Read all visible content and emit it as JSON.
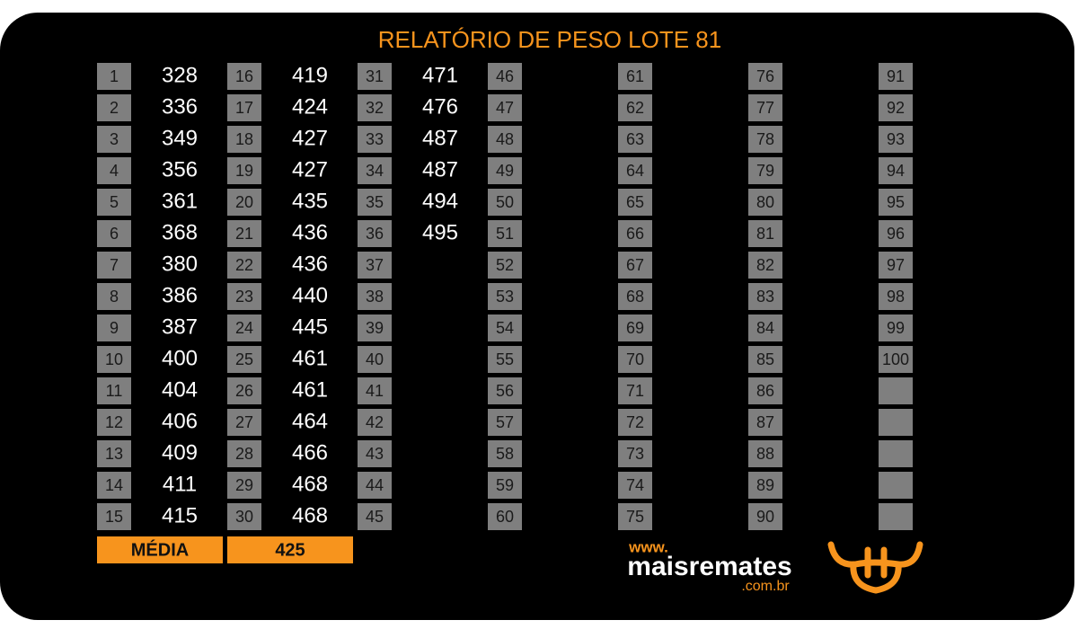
{
  "header": {
    "title": "RELATÓRIO DE PESO LOTE  81"
  },
  "columns": [
    {
      "ids": [
        1,
        2,
        3,
        4,
        5,
        6,
        7,
        8,
        9,
        10,
        11,
        12,
        13,
        14,
        15
      ],
      "weights": [
        328,
        336,
        349,
        356,
        361,
        368,
        380,
        386,
        387,
        400,
        404,
        406,
        409,
        411,
        415
      ]
    },
    {
      "ids": [
        16,
        17,
        18,
        19,
        20,
        21,
        22,
        23,
        24,
        25,
        26,
        27,
        28,
        29,
        30
      ],
      "weights": [
        419,
        424,
        427,
        427,
        435,
        436,
        436,
        440,
        445,
        461,
        461,
        464,
        466,
        468,
        468
      ]
    },
    {
      "ids": [
        31,
        32,
        33,
        34,
        35,
        36,
        37,
        38,
        39,
        40,
        41,
        42,
        43,
        44,
        45
      ],
      "weights": [
        471,
        476,
        487,
        487,
        494,
        495
      ]
    },
    {
      "ids": [
        46,
        47,
        48,
        49,
        50,
        51,
        52,
        53,
        54,
        55,
        56,
        57,
        58,
        59,
        60
      ],
      "weights": []
    },
    {
      "ids": [
        61,
        62,
        63,
        64,
        65,
        66,
        67,
        68,
        69,
        70,
        71,
        72,
        73,
        74,
        75
      ],
      "weights": []
    },
    {
      "ids": [
        76,
        77,
        78,
        79,
        80,
        81,
        82,
        83,
        84,
        85,
        86,
        87,
        88,
        89,
        90
      ],
      "weights": []
    },
    {
      "ids": [
        91,
        92,
        93,
        94,
        95,
        96,
        97,
        98,
        99,
        100
      ],
      "weights": []
    }
  ],
  "footer": {
    "average_label": "MÉDIA",
    "average_value": 425
  },
  "logo": {
    "prefix": "www.",
    "name": "maisremates",
    "suffix": ".com.br"
  }
}
